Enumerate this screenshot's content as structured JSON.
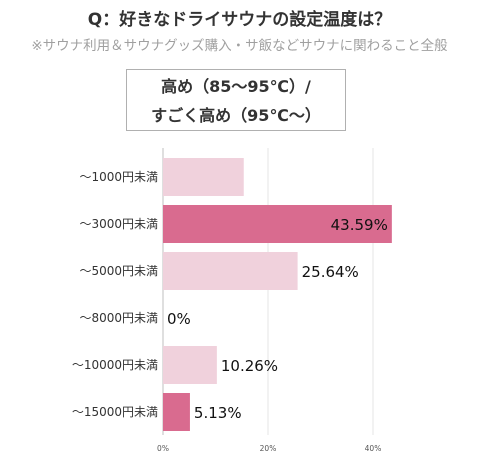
{
  "header": {
    "title": "Q：好きなドライサウナの設定温度は？",
    "subtitle": "※サウナ利用＆サウナグッズ購入・サ飯などサウナに関わること全般"
  },
  "legend": {
    "line1": "高め（85～95℃）/",
    "line2": "すごく高め（95℃～）"
  },
  "colors": {
    "bar_light": "#f0d1dc",
    "bar_dark": "#d96b8f",
    "grid": "#e6e6e6",
    "axis": "#bfbfbf"
  },
  "chart_data": {
    "type": "bar",
    "orientation": "horizontal",
    "categories": [
      "～1000円未満",
      "～3000円未満",
      "～5000円未満",
      "～8000円未満",
      "～10000円未満",
      "～15000円未満"
    ],
    "values": [
      15.38,
      43.59,
      25.64,
      0,
      10.26,
      5.13
    ],
    "value_labels": [
      "",
      "43.59%",
      "25.64%",
      "0%",
      "10.26%",
      "5.13%"
    ],
    "highlight": [
      false,
      true,
      false,
      false,
      false,
      true
    ],
    "x_ticks": [
      "0%",
      "20%",
      "40%"
    ],
    "x_tick_values": [
      0,
      20,
      40
    ],
    "xlim": [
      0,
      48
    ],
    "grid": true
  }
}
